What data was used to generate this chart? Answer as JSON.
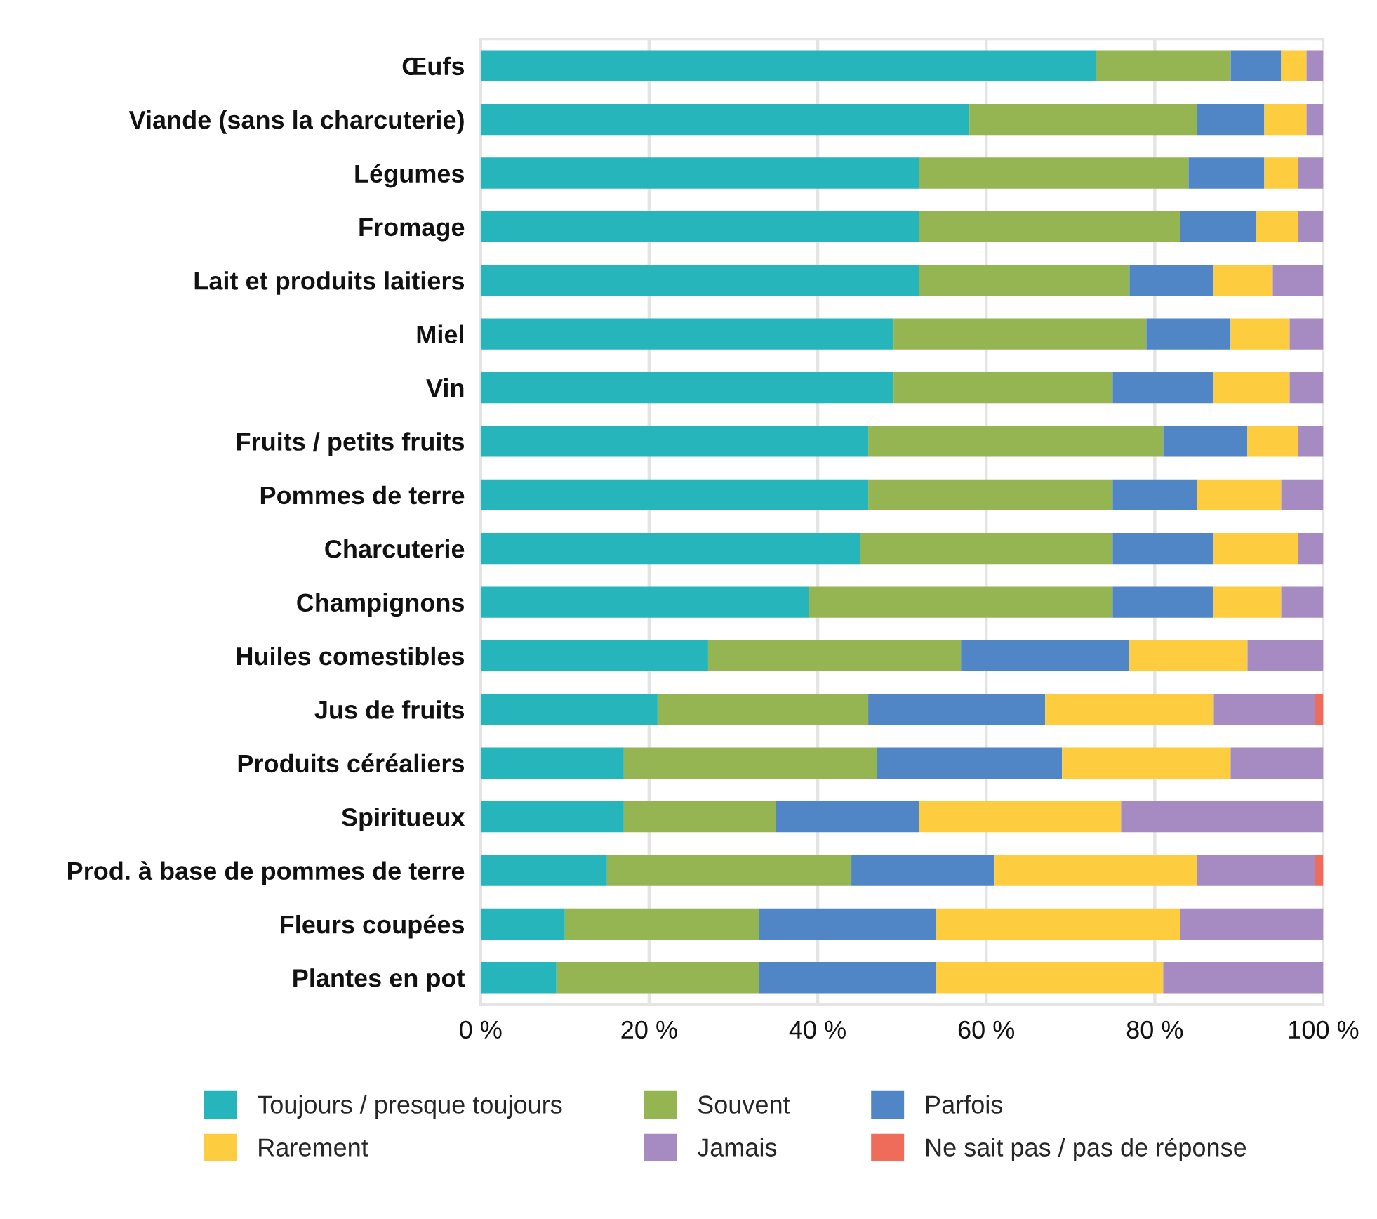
{
  "chart_data": {
    "type": "bar",
    "orientation": "horizontal",
    "stacked": true,
    "categories": [
      "Œufs",
      "Viande (sans la charcuterie)",
      "Légumes",
      "Fromage",
      "Lait et produits laitiers",
      "Miel",
      "Vin",
      "Fruits / petits fruits",
      "Pommes de terre",
      "Charcuterie",
      "Champignons",
      "Huiles comestibles",
      "Jus de fruits",
      "Produits céréaliers",
      "Spiritueux",
      "Prod. à base de pommes de terre",
      "Fleurs coupées",
      "Plantes en pot"
    ],
    "series": [
      {
        "name": "Toujours / presque toujours",
        "color": "#26b5bb",
        "values": [
          73,
          58,
          52,
          52,
          52,
          49,
          49,
          46,
          46,
          45,
          39,
          27,
          21,
          17,
          17,
          15,
          10,
          9
        ]
      },
      {
        "name": "Souvent",
        "color": "#95b553",
        "values": [
          16,
          27,
          32,
          31,
          25,
          30,
          26,
          35,
          29,
          30,
          36,
          30,
          25,
          30,
          18,
          29,
          23,
          24
        ]
      },
      {
        "name": "Parfois",
        "color": "#5186c6",
        "values": [
          6,
          8,
          9,
          9,
          10,
          10,
          12,
          10,
          10,
          12,
          12,
          20,
          21,
          22,
          17,
          17,
          21,
          21
        ]
      },
      {
        "name": "Rarement",
        "color": "#fdcd3f",
        "values": [
          3,
          5,
          4,
          5,
          7,
          7,
          9,
          6,
          10,
          10,
          8,
          14,
          20,
          20,
          24,
          24,
          29,
          27
        ]
      },
      {
        "name": "Jamais",
        "color": "#a58bc2",
        "values": [
          2,
          2,
          3,
          3,
          6,
          4,
          4,
          3,
          5,
          3,
          5,
          9,
          12,
          11,
          24,
          14,
          17,
          19
        ]
      },
      {
        "name": "Ne sait pas / pas de réponse",
        "color": "#ef6b5a",
        "values": [
          null,
          null,
          null,
          null,
          null,
          null,
          null,
          null,
          null,
          null,
          null,
          null,
          1,
          null,
          null,
          1,
          null,
          null
        ]
      }
    ],
    "xlim": [
      0,
      100
    ],
    "xticks": [
      {
        "value": 0,
        "label": "0 %"
      },
      {
        "value": 20,
        "label": "20 %"
      },
      {
        "value": 40,
        "label": "40 %"
      },
      {
        "value": 60,
        "label": "60 %"
      },
      {
        "value": 80,
        "label": "80 %"
      },
      {
        "value": 100,
        "label": "100 %"
      }
    ],
    "grid": "x",
    "legend": "bottom"
  }
}
